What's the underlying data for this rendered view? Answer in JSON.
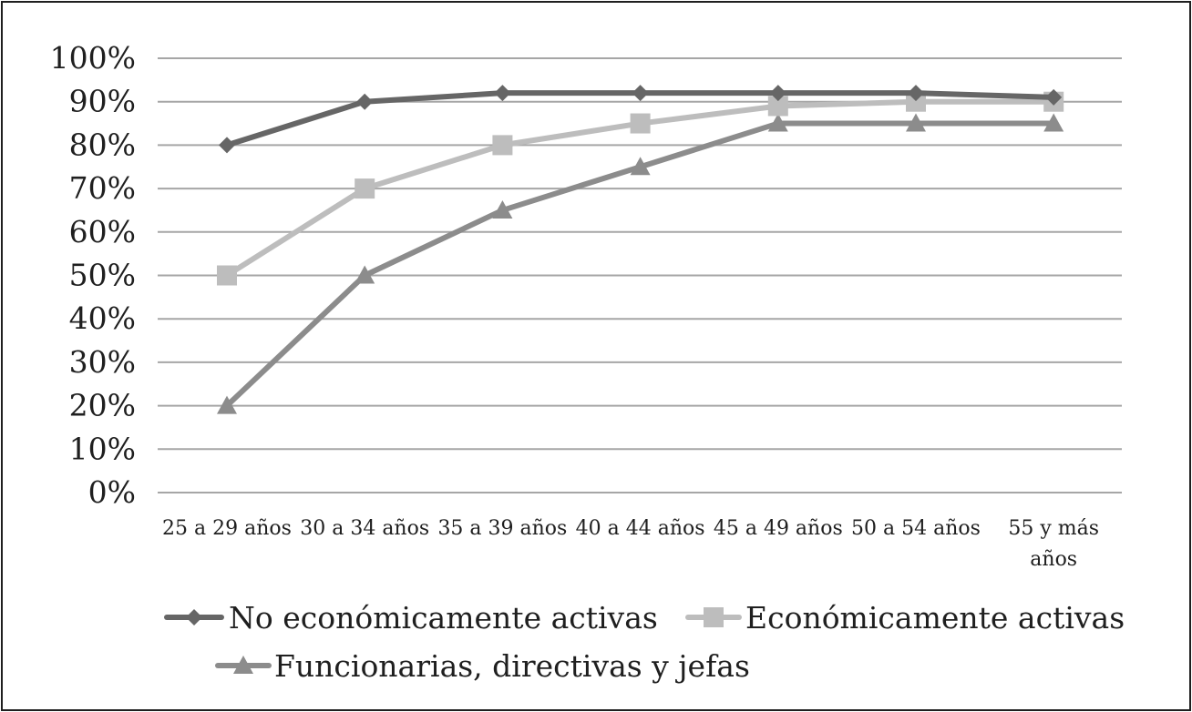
{
  "chart_data": {
    "type": "line",
    "title": "",
    "xlabel": "",
    "ylabel": "",
    "categories": [
      "25 a 29 años",
      "30 a 34 años",
      "35 a 39 años",
      "40 a 44 años",
      "45 a 49 años",
      "50 a 54 años",
      "55 y más años"
    ],
    "category_display_lines": [
      [
        "25 a 29 años"
      ],
      [
        "30 a 34 años"
      ],
      [
        "35 a 39 años"
      ],
      [
        "40 a 44 años"
      ],
      [
        "45 a 49 años"
      ],
      [
        "50 a 54 años"
      ],
      [
        "55 y más",
        "años"
      ]
    ],
    "ylim": [
      0,
      1
    ],
    "yticks": [
      0,
      0.1,
      0.2,
      0.3,
      0.4,
      0.5,
      0.6,
      0.7,
      0.8,
      0.9,
      1.0
    ],
    "ytick_labels": [
      "0%",
      "10%",
      "20%",
      "30%",
      "40%",
      "50%",
      "60%",
      "70%",
      "80%",
      "90%",
      "100%"
    ],
    "grid": "horizontal",
    "legend_position": "bottom",
    "series": [
      {
        "name": "No económicamente activas",
        "values": [
          0.8,
          0.9,
          0.92,
          0.92,
          0.92,
          0.92,
          0.91
        ],
        "color": "#666666",
        "marker": "diamond"
      },
      {
        "name": "Económicamente activas",
        "values": [
          0.5,
          0.7,
          0.8,
          0.85,
          0.89,
          0.9,
          0.9
        ],
        "color": "#bdbdbd",
        "marker": "square"
      },
      {
        "name": "Funcionarias, directivas y jefas",
        "values": [
          0.2,
          0.5,
          0.65,
          0.75,
          0.85,
          0.85,
          0.85
        ],
        "color": "#8c8c8c",
        "marker": "triangle"
      }
    ]
  }
}
